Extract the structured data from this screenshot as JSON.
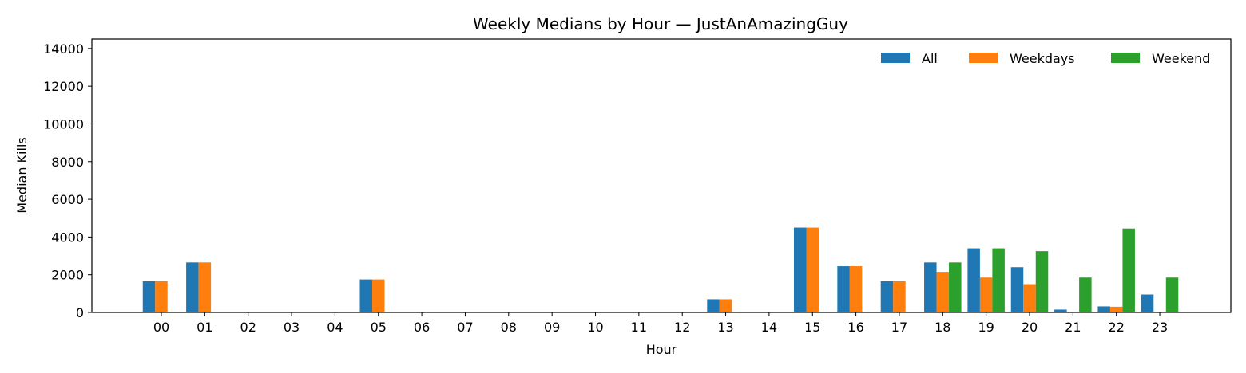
{
  "chart_data": {
    "type": "bar",
    "title": "Weekly Medians by Hour — JustAnAmazingGuy",
    "xlabel": "Hour",
    "ylabel": "Median Kills",
    "categories": [
      "00",
      "01",
      "02",
      "03",
      "04",
      "05",
      "06",
      "07",
      "08",
      "09",
      "10",
      "11",
      "12",
      "13",
      "14",
      "15",
      "16",
      "17",
      "18",
      "19",
      "20",
      "21",
      "22",
      "23"
    ],
    "ylim": [
      0,
      14500
    ],
    "yticks": [
      0,
      2000,
      4000,
      6000,
      8000,
      10000,
      12000,
      14000
    ],
    "grid": false,
    "legend_position": "top-right",
    "series": [
      {
        "name": "All",
        "color": "#1f77b4",
        "values": [
          1650,
          2650,
          0,
          0,
          0,
          1750,
          0,
          0,
          0,
          0,
          0,
          0,
          0,
          700,
          0,
          4500,
          2450,
          1650,
          2650,
          3400,
          2400,
          150,
          320,
          950
        ]
      },
      {
        "name": "Weekdays",
        "color": "#ff7f0e",
        "values": [
          1650,
          2650,
          0,
          0,
          0,
          1750,
          0,
          0,
          0,
          0,
          0,
          0,
          0,
          700,
          0,
          4500,
          2450,
          1650,
          2150,
          1850,
          1500,
          0,
          300,
          0
        ]
      },
      {
        "name": "Weekend",
        "color": "#2ca02c",
        "values": [
          0,
          0,
          0,
          0,
          0,
          0,
          0,
          0,
          0,
          0,
          0,
          0,
          0,
          0,
          0,
          0,
          0,
          0,
          2650,
          3400,
          3250,
          1850,
          4450,
          1850
        ]
      }
    ]
  }
}
